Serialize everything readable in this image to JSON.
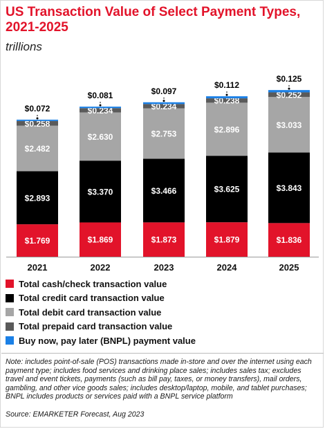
{
  "chart_data": {
    "type": "bar",
    "stacked": true,
    "title": "US Transaction Value of Select Payment Types, 2021-2025",
    "subtitle": "trillions",
    "categories": [
      "2021",
      "2022",
      "2023",
      "2024",
      "2025"
    ],
    "series": [
      {
        "name": "Total cash/check transaction value",
        "color": "#e2132a",
        "label_color": "#ffffff",
        "values": [
          1.769,
          1.869,
          1.873,
          1.879,
          1.836
        ]
      },
      {
        "name": "Total credit card transaction value",
        "color": "#000000",
        "label_color": "#ffffff",
        "values": [
          2.893,
          3.37,
          3.466,
          3.625,
          3.843
        ]
      },
      {
        "name": "Total debit card transaction value",
        "color": "#a6a6a6",
        "label_color": "#ffffff",
        "values": [
          2.482,
          2.63,
          2.753,
          2.896,
          3.033
        ]
      },
      {
        "name": "Total prepaid card transaction value",
        "color": "#5a5a5a",
        "label_color": "#ffffff",
        "values": [
          0.258,
          0.234,
          0.234,
          0.238,
          0.252
        ]
      },
      {
        "name": "Buy now, pay later (BNPL) payment value",
        "color": "#1b80e6",
        "label_color": "#000000",
        "values": [
          0.072,
          0.081,
          0.097,
          0.112,
          0.125
        ]
      }
    ],
    "value_labels": [
      [
        "$1.769",
        "$1.869",
        "$1.873",
        "$1.879",
        "$1.836"
      ],
      [
        "$2.893",
        "$3.370",
        "$3.466",
        "$3.625",
        "$3.843"
      ],
      [
        "$2.482",
        "$2.630",
        "$2.753",
        "$2.896",
        "$3.033"
      ],
      [
        "$0.258",
        "$0.234",
        "$0.234",
        "$0.238",
        "$0.252"
      ],
      [
        "$0.072",
        "$0.081",
        "$0.097",
        "$0.112",
        "$0.125"
      ]
    ],
    "legend_position": "bottom",
    "grid": false
  },
  "note": {
    "text": "Note: includes point-of-sale (POS) transactions made in-store and over the internet using each payment type; includes food services and drinking place sales; includes sales tax; excludes travel and event tickets, payments (such as bill pay, taxes, or money transfers), mail orders, gambling, and other vice goods sales; includes desktop/laptop, mobile, and tablet purchases; BNPL includes products or services paid with a BNPL service platform",
    "source": "Source: EMARKETER Forecast, Aug 2023"
  }
}
